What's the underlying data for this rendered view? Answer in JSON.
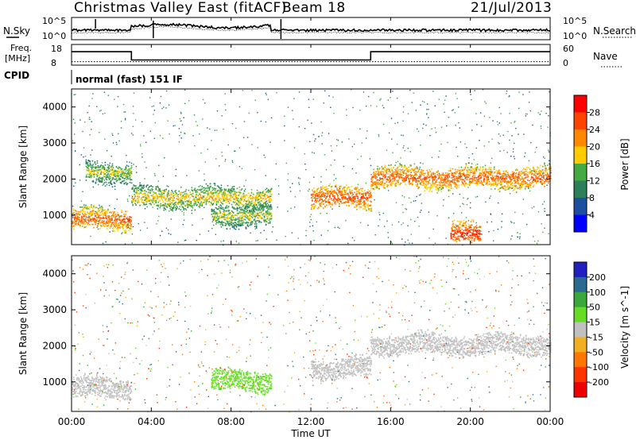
{
  "header": {
    "station_title": "Christmas Valley East (fitACF)",
    "beam_label": "Beam 18",
    "date": "21/Jul/2013"
  },
  "noise_panel": {
    "left_label": "N.Sky",
    "left_ticks": [
      "10^5",
      "10^0"
    ],
    "right_ticks": [
      "10^5",
      "10^0"
    ],
    "right_label": "N.Search"
  },
  "freq_panel": {
    "left_label_1": "Freq.",
    "left_label_2": "[MHz]",
    "left_ticks": [
      "18",
      "8"
    ],
    "right_ticks": [
      "60",
      "0"
    ],
    "right_label": "Nave"
  },
  "cpid": {
    "label": "CPID",
    "program": "normal (fast) 151 IF"
  },
  "power_panel": {
    "ylabel": "Slant Range [km]",
    "colorbar_label": "Power [dB]",
    "colorbar_ticks": [
      "28",
      "24",
      "20",
      "16",
      "12",
      "8",
      "4"
    ],
    "colorbar_colors": [
      "#ff0000",
      "#ff4400",
      "#ff8800",
      "#ffcc00",
      "#44aa44",
      "#2d7f5a",
      "#1c4fa0",
      "#0000ff"
    ]
  },
  "velocity_panel": {
    "ylabel": "Slant Range [km]",
    "colorbar_label": "Velocity [m s^-1]",
    "colorbar_ticks": [
      "200",
      "100",
      "50",
      "15",
      "-15",
      "-50",
      "-100",
      "-200"
    ],
    "colorbar_colors": [
      "#2020c0",
      "#286b8f",
      "#3aa83a",
      "#66dd22",
      "#c0c0c0",
      "#f0b020",
      "#ff7700",
      "#ff3300",
      "#ee0000"
    ]
  },
  "x_axis": {
    "label": "Time UT",
    "ticks": [
      "00:00",
      "04:00",
      "08:00",
      "12:00",
      "16:00",
      "20:00",
      "00:00"
    ]
  },
  "chart_data": {
    "type": "heatmap",
    "title": "Christmas Valley East (fitACF) Beam 18 21/Jul/2013",
    "xlabel": "Time UT",
    "ylabel": "Slant Range [km]",
    "xlim_hours": [
      0,
      24
    ],
    "ylim_km": [
      180,
      4500
    ],
    "y_ticks": [
      1000,
      2000,
      3000,
      4000
    ],
    "power_scale_db": [
      0,
      30
    ],
    "velocity_scale_ms": [
      -250,
      250
    ],
    "data_gaps_hours": [
      [
        10.4,
        10.6
      ],
      [
        11.2,
        11.3
      ],
      [
        11.5,
        11.6
      ]
    ],
    "frequency_mhz": {
      "segments": [
        {
          "from": 0,
          "to": 3.0,
          "value": 14.5
        },
        {
          "from": 3.0,
          "to": 15.0,
          "value": 10.5
        },
        {
          "from": 15.0,
          "to": 24,
          "value": 14.5
        }
      ]
    },
    "nave": 10,
    "power_echo_bands": [
      {
        "t_start": 0.0,
        "t_end": 3.0,
        "range_km": 900,
        "power_db": 26
      },
      {
        "t_start": 0.7,
        "t_end": 3.0,
        "range_km": 2200,
        "power_db": 18
      },
      {
        "t_start": 3.0,
        "t_end": 10.0,
        "range_km": 1500,
        "power_db": 20
      },
      {
        "t_start": 7.0,
        "t_end": 10.0,
        "range_km": 1000,
        "power_db": 18
      },
      {
        "t_start": 12.0,
        "t_end": 15.0,
        "range_km": 1500,
        "power_db": 27
      },
      {
        "t_start": 15.0,
        "t_end": 24.0,
        "range_km": 2050,
        "power_db": 26
      },
      {
        "t_start": 19.0,
        "t_end": 20.5,
        "range_km": 500,
        "power_db": 29
      }
    ],
    "velocity_echo_bands": [
      {
        "t_start": 0.0,
        "t_end": 3.0,
        "range_km": 850,
        "velocity_ms": 0
      },
      {
        "t_start": 7.0,
        "t_end": 10.0,
        "range_km": 1050,
        "velocity_ms": 30
      },
      {
        "t_start": 12.0,
        "t_end": 15.0,
        "range_km": 1400,
        "velocity_ms": 0
      },
      {
        "t_start": 15.0,
        "t_end": 24.0,
        "range_km": 2050,
        "velocity_ms": 0
      }
    ]
  }
}
